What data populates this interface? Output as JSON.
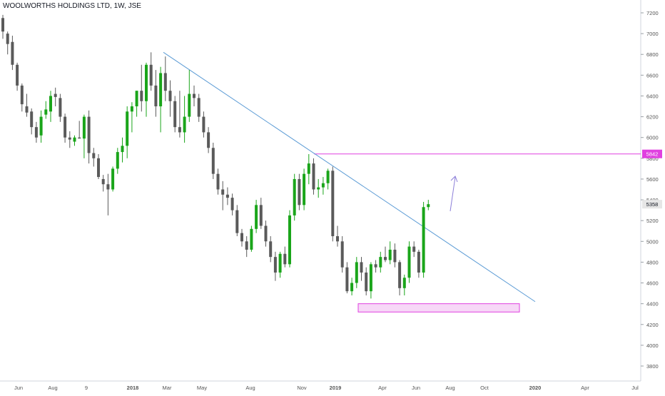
{
  "chart_data": {
    "type": "candlestick",
    "title": "WOOLWORTHS HOLDINGS LTD, 1W, JSE",
    "interval": "1W",
    "y_axis": {
      "side": "right",
      "range": [
        3620,
        7300
      ],
      "ticks": [
        3800,
        4000,
        4200,
        4400,
        4600,
        4800,
        5000,
        5200,
        5400,
        5600,
        5800,
        6000,
        6200,
        6400,
        6600,
        6800,
        7000,
        7200
      ]
    },
    "x_axis": {
      "labels": [
        "Jun",
        "Aug",
        "9",
        "2018",
        "Mar",
        "May",
        "Aug",
        "Nov",
        "2019",
        "Apr",
        "Jun",
        "Aug",
        "Oct",
        "2020",
        "Apr",
        "Jul"
      ],
      "bold_labels": [
        "2018",
        "2019",
        "2020"
      ]
    },
    "grid": false,
    "colors": {
      "up": "#1aa51a",
      "down": "#5a5a5a",
      "trendline": "#5b9bd5",
      "resistance": "#e040e0",
      "zone_fill": "#f7d8f7",
      "arrow": "#8c7fd9",
      "last_price_bg": "#e6e6e6"
    },
    "price_labels": {
      "resistance": "5842",
      "last": "5358"
    },
    "candles_ohlc": [
      [
        7150,
        7180,
        6950,
        7020
      ],
      [
        7000,
        7020,
        6800,
        6900
      ],
      [
        6920,
        6980,
        6650,
        6700
      ],
      [
        6700,
        6720,
        6450,
        6500
      ],
      [
        6500,
        6520,
        6250,
        6320
      ],
      [
        6300,
        6420,
        6200,
        6240
      ],
      [
        6250,
        6280,
        6030,
        6100
      ],
      [
        6100,
        6150,
        5950,
        6000
      ],
      [
        6020,
        6260,
        5950,
        6200
      ],
      [
        6220,
        6350,
        6180,
        6270
      ],
      [
        6250,
        6450,
        6150,
        6400
      ],
      [
        6420,
        6480,
        6300,
        6390
      ],
      [
        6380,
        6420,
        6150,
        6200
      ],
      [
        6200,
        6230,
        5950,
        6000
      ],
      [
        6000,
        6060,
        5900,
        5980
      ],
      [
        5960,
        6020,
        5920,
        6000
      ],
      [
        6000,
        6160,
        5990,
        5990
      ],
      [
        5990,
        6220,
        5800,
        6200
      ],
      [
        6200,
        6260,
        5750,
        5850
      ],
      [
        5850,
        5900,
        5720,
        5800
      ],
      [
        5800,
        5840,
        5600,
        5620
      ],
      [
        5600,
        5640,
        5480,
        5550
      ],
      [
        5550,
        5650,
        5250,
        5500
      ],
      [
        5500,
        5720,
        5480,
        5700
      ],
      [
        5700,
        5900,
        5650,
        5860
      ],
      [
        5860,
        6000,
        5760,
        5920
      ],
      [
        5920,
        6300,
        5800,
        6250
      ],
      [
        6250,
        6340,
        6050,
        6300
      ],
      [
        6300,
        6450,
        6200,
        6450
      ],
      [
        6450,
        6700,
        6250,
        6350
      ],
      [
        6350,
        6720,
        6200,
        6700
      ],
      [
        6700,
        6820,
        6450,
        6500
      ],
      [
        6500,
        6650,
        6200,
        6300
      ],
      [
        6300,
        6680,
        6050,
        6620
      ],
      [
        6620,
        6780,
        6350,
        6450
      ],
      [
        6450,
        6550,
        6200,
        6350
      ],
      [
        6350,
        6400,
        6050,
        6100
      ],
      [
        6100,
        6450,
        6000,
        6050
      ],
      [
        6050,
        6400,
        5950,
        6200
      ],
      [
        6200,
        6650,
        6150,
        6420
      ],
      [
        6420,
        6500,
        6300,
        6380
      ],
      [
        6380,
        6420,
        6150,
        6200
      ],
      [
        6200,
        6250,
        6000,
        6050
      ],
      [
        6050,
        6100,
        5850,
        5900
      ],
      [
        5900,
        5950,
        5600,
        5650
      ],
      [
        5650,
        5700,
        5450,
        5500
      ],
      [
        5500,
        5580,
        5300,
        5450
      ],
      [
        5450,
        5520,
        5350,
        5420
      ],
      [
        5420,
        5460,
        5250,
        5300
      ],
      [
        5300,
        5350,
        5050,
        5080
      ],
      [
        5080,
        5120,
        4950,
        5000
      ],
      [
        5000,
        5050,
        4850,
        4920
      ],
      [
        4920,
        5150,
        4900,
        5120
      ],
      [
        5120,
        5400,
        5080,
        5350
      ],
      [
        5350,
        5420,
        5120,
        5150
      ],
      [
        5150,
        5200,
        4950,
        5000
      ],
      [
        5000,
        5050,
        4800,
        4850
      ],
      [
        4850,
        4900,
        4620,
        4700
      ],
      [
        4700,
        4900,
        4650,
        4880
      ],
      [
        4880,
        4950,
        4750,
        4780
      ],
      [
        4780,
        5300,
        4750,
        5250
      ],
      [
        5250,
        5650,
        5200,
        5600
      ],
      [
        5600,
        5650,
        5300,
        5350
      ],
      [
        5350,
        5700,
        5300,
        5650
      ],
      [
        5650,
        5840,
        5550,
        5750
      ],
      [
        5750,
        5800,
        5450,
        5500
      ],
      [
        5500,
        5600,
        5420,
        5520
      ],
      [
        5520,
        5620,
        5450,
        5560
      ],
      [
        5560,
        5700,
        5500,
        5680
      ],
      [
        5680,
        5720,
        5000,
        5050
      ],
      [
        5050,
        5150,
        4950,
        5000
      ],
      [
        5000,
        5050,
        4700,
        4750
      ],
      [
        4750,
        4800,
        4500,
        4520
      ],
      [
        4520,
        4650,
        4480,
        4600
      ],
      [
        4600,
        4850,
        4550,
        4800
      ],
      [
        4800,
        4850,
        4620,
        4700
      ],
      [
        4700,
        4750,
        4480,
        4520
      ],
      [
        4520,
        4800,
        4450,
        4780
      ],
      [
        4780,
        4820,
        4700,
        4750
      ],
      [
        4750,
        4900,
        4700,
        4850
      ],
      [
        4850,
        4950,
        4800,
        4820
      ],
      [
        4820,
        5000,
        4780,
        4920
      ],
      [
        4920,
        4980,
        4750,
        4800
      ],
      [
        4800,
        4820,
        4480,
        4550
      ],
      [
        4550,
        4680,
        4480,
        4650
      ],
      [
        4650,
        5000,
        4600,
        4950
      ],
      [
        4950,
        5000,
        4850,
        4900
      ],
      [
        4900,
        4920,
        4650,
        4700
      ],
      [
        4700,
        5380,
        4650,
        5330
      ],
      [
        5330,
        5400,
        5300,
        5358
      ]
    ],
    "trendline": {
      "from": [
        6820,
        "2018-02-26"
      ],
      "to": [
        4420,
        "2019-12-02"
      ]
    },
    "resistance_level": 5842,
    "demand_zone": {
      "low": 4320,
      "high": 4400
    }
  }
}
